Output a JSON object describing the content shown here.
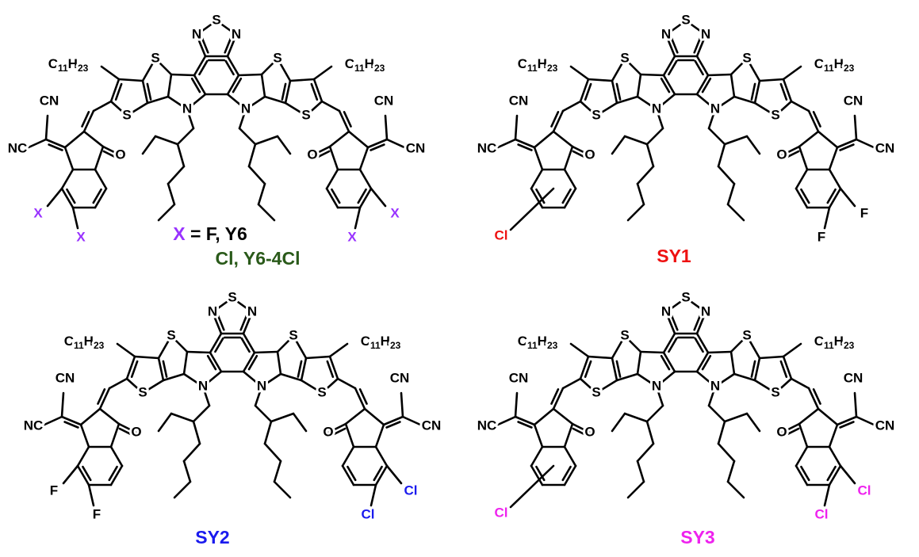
{
  "atoms": {
    "S": "S",
    "N": "N",
    "O": "O",
    "CN": "CN",
    "NC": "NC",
    "alkyl": [
      "C",
      "11",
      "H",
      "23"
    ]
  },
  "molecules": [
    {
      "left_substituents": [
        "X",
        "X"
      ],
      "left_color": "#9933ff",
      "right_substituents": [
        "X",
        "X"
      ],
      "right_color": "#9933ff",
      "caption": [
        {
          "text": "X",
          "color": "#9933ff"
        },
        {
          "text": " =  F, Y6",
          "color": "#000000"
        }
      ],
      "caption_line2": [
        {
          "text": "Cl, Y6-4Cl",
          "color": "#2a5a1a"
        }
      ]
    },
    {
      "left_substituents": [
        "Cl"
      ],
      "left_color": "#ee1111",
      "right_substituents": [
        "F",
        "F"
      ],
      "right_color": "#000000",
      "caption": [
        {
          "text": "SY1",
          "color": "#ee1111"
        }
      ]
    },
    {
      "left_substituents": [
        "F",
        "F"
      ],
      "left_color": "#000000",
      "right_substituents": [
        "Cl",
        "Cl"
      ],
      "right_color": "#1a1aee",
      "caption": [
        {
          "text": "SY2",
          "color": "#1a1aee"
        }
      ]
    },
    {
      "left_substituents": [
        "Cl"
      ],
      "left_color": "#ee22ee",
      "right_substituents": [
        "Cl",
        "Cl"
      ],
      "right_color": "#ee22ee",
      "caption": [
        {
          "text": "SY3",
          "color": "#ee22ee"
        }
      ]
    }
  ]
}
